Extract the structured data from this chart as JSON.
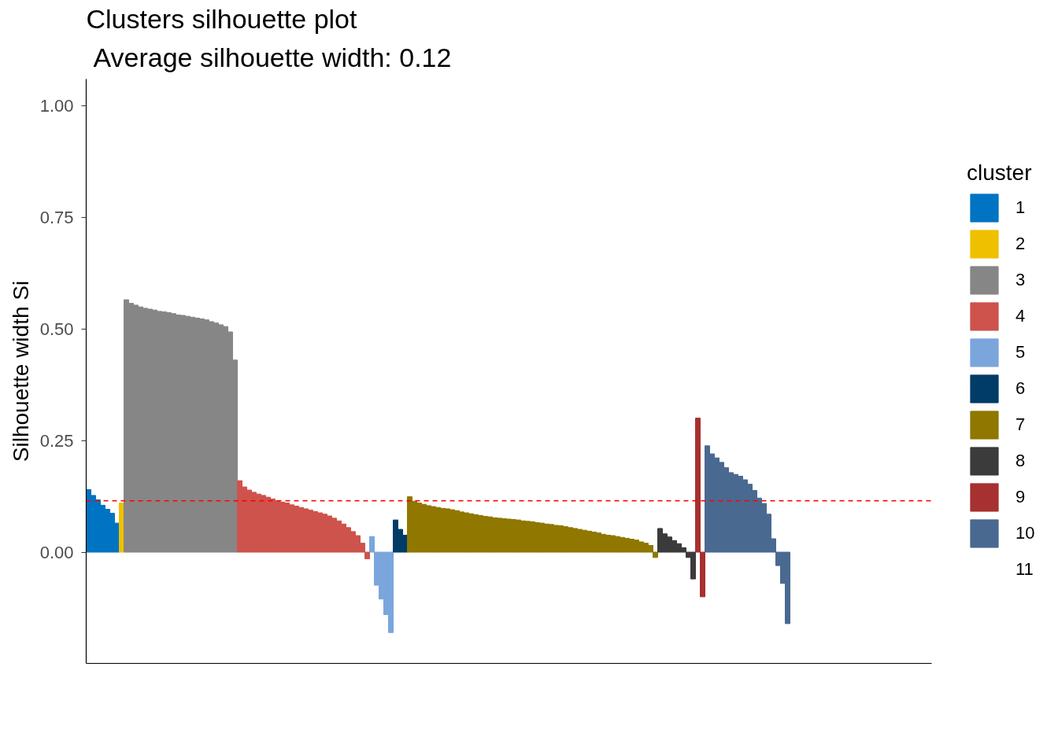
{
  "chart_data": {
    "type": "bar",
    "title": "Clusters silhouette plot",
    "subtitle": "Average silhouette width: 0.12",
    "ylabel": "Silhouette width Si",
    "legend_title": "cluster",
    "legend": "right",
    "tick_labels": "y",
    "ylim": [
      -0.249,
      1.059
    ],
    "yticks": [
      {
        "value": 0,
        "label": "0.00"
      },
      {
        "value": 0.25,
        "label": "0.25"
      },
      {
        "value": 0.5,
        "label": "0.50"
      },
      {
        "value": 0.75,
        "label": "0.75"
      },
      {
        "value": 1,
        "label": "1.00"
      }
    ],
    "ref_lines": [
      {
        "axis": "y",
        "value": 0.115,
        "color": "#ff0000",
        "line_style": "dashed"
      }
    ],
    "categories": [
      null,
      null,
      null,
      null,
      null,
      null,
      null,
      null,
      null,
      null,
      null,
      null,
      null,
      null,
      null,
      null,
      null,
      null,
      null,
      null,
      null,
      null,
      null,
      null,
      null,
      null,
      null,
      null,
      null,
      null,
      null,
      null,
      null,
      null,
      null,
      null,
      null,
      null,
      null,
      null,
      null,
      null,
      null,
      null,
      null,
      null,
      null,
      null,
      null,
      null,
      null,
      null,
      null,
      null,
      null,
      null,
      null,
      null,
      null,
      null,
      null,
      null,
      null,
      null,
      null,
      null,
      null,
      null,
      null,
      null,
      null,
      null,
      null,
      null,
      null,
      null,
      null,
      null,
      null,
      null,
      null,
      null,
      null,
      null,
      null,
      null,
      null,
      null,
      null,
      null,
      null,
      null,
      null,
      null,
      null,
      null,
      null,
      null,
      null,
      null,
      null,
      null,
      null,
      null,
      null,
      null,
      null,
      null,
      null,
      null,
      null,
      null,
      null,
      null,
      null,
      null,
      null,
      null,
      null,
      null,
      null,
      null,
      null,
      null,
      null,
      null,
      null,
      null,
      null,
      null,
      null,
      null,
      null,
      null,
      null,
      null,
      null,
      null,
      null,
      null,
      null,
      null,
      null,
      null,
      null,
      null,
      null,
      null,
      null,
      null,
      null,
      null,
      null,
      null,
      null,
      null,
      null,
      null,
      null,
      null,
      null,
      null,
      null,
      null,
      null,
      null,
      null,
      null,
      null,
      null,
      null,
      null,
      null,
      null,
      null,
      null,
      null,
      null,
      null
    ],
    "series": [
      {
        "name": "1",
        "color": "#0073c2",
        "values": [
          0.14,
          0.127,
          0.117,
          0.105,
          0.096,
          0.087,
          0.065,
          null,
          null,
          null,
          null,
          null,
          null,
          null,
          null,
          null,
          null,
          null,
          null,
          null,
          null,
          null,
          null,
          null,
          null,
          null,
          null,
          null,
          null,
          null,
          null,
          null,
          null,
          null,
          null,
          null,
          null,
          null,
          null,
          null,
          null,
          null,
          null,
          null,
          null,
          null,
          null,
          null,
          null,
          null,
          null,
          null,
          null,
          null,
          null,
          null,
          null,
          null,
          null,
          null,
          null,
          null,
          null,
          null,
          null,
          null,
          null,
          null,
          null,
          null,
          null,
          null,
          null,
          null,
          null,
          null,
          null,
          null,
          null,
          null,
          null,
          null,
          null,
          null,
          null,
          null,
          null,
          null,
          null,
          null,
          null,
          null,
          null,
          null,
          null,
          null,
          null,
          null,
          null,
          null,
          null,
          null,
          null,
          null,
          null,
          null,
          null,
          null,
          null,
          null,
          null,
          null,
          null,
          null,
          null,
          null,
          null,
          null,
          null,
          null,
          null,
          null,
          null,
          null,
          null,
          null,
          null,
          null,
          null,
          null,
          null,
          null,
          null,
          null,
          null,
          null,
          null,
          null,
          null,
          null,
          null,
          null,
          null,
          null,
          null,
          null,
          null,
          null,
          null,
          null,
          null,
          null,
          null,
          null,
          null,
          null,
          null,
          null,
          null,
          null,
          null,
          null,
          null,
          null,
          null,
          null,
          null,
          null,
          null,
          null,
          null,
          null,
          null,
          null,
          null,
          null,
          null,
          null,
          null
        ]
      },
      {
        "name": "2",
        "color": "#efc000",
        "values": [
          null,
          null,
          null,
          null,
          null,
          null,
          null,
          0.11,
          null,
          null,
          null,
          null,
          null,
          null,
          null,
          null,
          null,
          null,
          null,
          null,
          null,
          null,
          null,
          null,
          null,
          null,
          null,
          null,
          null,
          null,
          null,
          null,
          null,
          null,
          null,
          null,
          null,
          null,
          null,
          null,
          null,
          null,
          null,
          null,
          null,
          null,
          null,
          null,
          null,
          null,
          null,
          null,
          null,
          null,
          null,
          null,
          null,
          null,
          null,
          null,
          null,
          null,
          null,
          null,
          null,
          null,
          null,
          null,
          null,
          null,
          null,
          null,
          null,
          null,
          null,
          null,
          null,
          null,
          null,
          null,
          null,
          null,
          null,
          null,
          null,
          null,
          null,
          null,
          null,
          null,
          null,
          null,
          null,
          null,
          null,
          null,
          null,
          null,
          null,
          null,
          null,
          null,
          null,
          null,
          null,
          null,
          null,
          null,
          null,
          null,
          null,
          null,
          null,
          null,
          null,
          null,
          null,
          null,
          null,
          null,
          null,
          null,
          null,
          null,
          null,
          null,
          null,
          null,
          null,
          null,
          null,
          null,
          null,
          null,
          null,
          null,
          null,
          null,
          null,
          null,
          null,
          null,
          null,
          null,
          null,
          null,
          null,
          null,
          null,
          null,
          null,
          null,
          null,
          null,
          null,
          null,
          null,
          null,
          null,
          null,
          null,
          null,
          null,
          null,
          null,
          null,
          null,
          null,
          null,
          null,
          null,
          null,
          null,
          null,
          null,
          null,
          null,
          null,
          null
        ]
      },
      {
        "name": "3",
        "color": "#868686",
        "values": [
          null,
          null,
          null,
          null,
          null,
          null,
          null,
          null,
          0.565,
          0.557,
          0.553,
          0.549,
          0.546,
          0.544,
          0.542,
          0.539,
          0.538,
          0.536,
          0.534,
          0.531,
          0.53,
          0.528,
          0.526,
          0.524,
          0.522,
          0.52,
          0.516,
          0.513,
          0.509,
          0.505,
          0.493,
          0.43,
          null,
          null,
          null,
          null,
          null,
          null,
          null,
          null,
          null,
          null,
          null,
          null,
          null,
          null,
          null,
          null,
          null,
          null,
          null,
          null,
          null,
          null,
          null,
          null,
          null,
          null,
          null,
          null,
          null,
          null,
          null,
          null,
          null,
          null,
          null,
          null,
          null,
          null,
          null,
          null,
          null,
          null,
          null,
          null,
          null,
          null,
          null,
          null,
          null,
          null,
          null,
          null,
          null,
          null,
          null,
          null,
          null,
          null,
          null,
          null,
          null,
          null,
          null,
          null,
          null,
          null,
          null,
          null,
          null,
          null,
          null,
          null,
          null,
          null,
          null,
          null,
          null,
          null,
          null,
          null,
          null,
          null,
          null,
          null,
          null,
          null,
          null,
          null,
          null,
          null,
          null,
          null,
          null,
          null,
          null,
          null,
          null,
          null,
          null,
          null,
          null,
          null,
          null,
          null,
          null,
          null,
          null,
          null,
          null,
          null,
          null,
          null,
          null,
          null,
          null,
          null,
          null,
          null,
          null,
          null,
          null,
          null,
          null,
          null,
          null,
          null,
          null,
          null,
          null,
          null,
          null,
          null,
          null,
          null,
          null,
          null,
          null,
          null,
          null,
          null,
          null,
          null,
          null,
          null,
          null,
          null,
          null
        ]
      },
      {
        "name": "4",
        "color": "#cd534c",
        "values": [
          null,
          null,
          null,
          null,
          null,
          null,
          null,
          null,
          null,
          null,
          null,
          null,
          null,
          null,
          null,
          null,
          null,
          null,
          null,
          null,
          null,
          null,
          null,
          null,
          null,
          null,
          null,
          null,
          null,
          null,
          null,
          null,
          0.16,
          0.146,
          0.139,
          0.134,
          0.13,
          0.127,
          0.123,
          0.119,
          0.115,
          0.112,
          0.11,
          0.106,
          0.103,
          0.1,
          0.097,
          0.094,
          0.091,
          0.088,
          0.085,
          0.081,
          0.076,
          0.07,
          0.063,
          0.055,
          0.046,
          0.037,
          0.02,
          -0.015,
          null,
          null,
          null,
          null,
          null,
          null,
          null,
          null,
          null,
          null,
          null,
          null,
          null,
          null,
          null,
          null,
          null,
          null,
          null,
          null,
          null,
          null,
          null,
          null,
          null,
          null,
          null,
          null,
          null,
          null,
          null,
          null,
          null,
          null,
          null,
          null,
          null,
          null,
          null,
          null,
          null,
          null,
          null,
          null,
          null,
          null,
          null,
          null,
          null,
          null,
          null,
          null,
          null,
          null,
          null,
          null,
          null,
          null,
          null,
          null,
          null,
          null,
          null,
          null,
          null,
          null,
          null,
          null,
          null,
          null,
          null,
          null,
          null,
          null,
          null,
          null,
          null,
          null,
          null,
          null,
          null,
          null,
          null,
          null,
          null,
          null,
          null,
          null,
          null,
          null,
          null,
          null,
          null,
          null,
          null,
          null,
          null,
          null,
          null,
          null,
          null,
          null,
          null,
          null,
          null,
          null,
          null,
          null,
          null,
          null,
          null,
          null,
          null,
          null,
          null,
          null,
          null,
          null,
          null
        ]
      },
      {
        "name": "5",
        "color": "#7aa6dc",
        "values": [
          null,
          null,
          null,
          null,
          null,
          null,
          null,
          null,
          null,
          null,
          null,
          null,
          null,
          null,
          null,
          null,
          null,
          null,
          null,
          null,
          null,
          null,
          null,
          null,
          null,
          null,
          null,
          null,
          null,
          null,
          null,
          null,
          null,
          null,
          null,
          null,
          null,
          null,
          null,
          null,
          null,
          null,
          null,
          null,
          null,
          null,
          null,
          null,
          null,
          null,
          null,
          null,
          null,
          null,
          null,
          null,
          null,
          null,
          null,
          null,
          0.035,
          -0.074,
          -0.105,
          -0.14,
          -0.18,
          null,
          null,
          null,
          null,
          null,
          null,
          null,
          null,
          null,
          null,
          null,
          null,
          null,
          null,
          null,
          null,
          null,
          null,
          null,
          null,
          null,
          null,
          null,
          null,
          null,
          null,
          null,
          null,
          null,
          null,
          null,
          null,
          null,
          null,
          null,
          null,
          null,
          null,
          null,
          null,
          null,
          null,
          null,
          null,
          null,
          null,
          null,
          null,
          null,
          null,
          null,
          null,
          null,
          null,
          null,
          null,
          null,
          null,
          null,
          null,
          null,
          null,
          null,
          null,
          null,
          null,
          null,
          null,
          null,
          null,
          null,
          null,
          null,
          null,
          null,
          null,
          null,
          null,
          null,
          null,
          null,
          null,
          null,
          null,
          null,
          null,
          null,
          null,
          null,
          null,
          null,
          null,
          null,
          null,
          null,
          null,
          null,
          null,
          null,
          null,
          null,
          null,
          null,
          null,
          null,
          null,
          null,
          null,
          null,
          null,
          null,
          null,
          null,
          null
        ]
      },
      {
        "name": "6",
        "color": "#003c67",
        "values": [
          null,
          null,
          null,
          null,
          null,
          null,
          null,
          null,
          null,
          null,
          null,
          null,
          null,
          null,
          null,
          null,
          null,
          null,
          null,
          null,
          null,
          null,
          null,
          null,
          null,
          null,
          null,
          null,
          null,
          null,
          null,
          null,
          null,
          null,
          null,
          null,
          null,
          null,
          null,
          null,
          null,
          null,
          null,
          null,
          null,
          null,
          null,
          null,
          null,
          null,
          null,
          null,
          null,
          null,
          null,
          null,
          null,
          null,
          null,
          null,
          null,
          null,
          null,
          null,
          null,
          0.072,
          0.051,
          0.038,
          null,
          null,
          null,
          null,
          null,
          null,
          null,
          null,
          null,
          null,
          null,
          null,
          null,
          null,
          null,
          null,
          null,
          null,
          null,
          null,
          null,
          null,
          null,
          null,
          null,
          null,
          null,
          null,
          null,
          null,
          null,
          null,
          null,
          null,
          null,
          null,
          null,
          null,
          null,
          null,
          null,
          null,
          null,
          null,
          null,
          null,
          null,
          null,
          null,
          null,
          null,
          null,
          null,
          null,
          null,
          null,
          null,
          null,
          null,
          null,
          null,
          null,
          null,
          null,
          null,
          null,
          null,
          null,
          null,
          null,
          null,
          null,
          null,
          null,
          null,
          null,
          null,
          null,
          null,
          null,
          null,
          null,
          null,
          null,
          null,
          null,
          null,
          null,
          null,
          null,
          null,
          null,
          null,
          null,
          null,
          null,
          null,
          null,
          null,
          null,
          null,
          null,
          null,
          null,
          null,
          null,
          null,
          null,
          null,
          null,
          null
        ]
      },
      {
        "name": "7",
        "color": "#8f7700",
        "values": [
          null,
          null,
          null,
          null,
          null,
          null,
          null,
          null,
          null,
          null,
          null,
          null,
          null,
          null,
          null,
          null,
          null,
          null,
          null,
          null,
          null,
          null,
          null,
          null,
          null,
          null,
          null,
          null,
          null,
          null,
          null,
          null,
          null,
          null,
          null,
          null,
          null,
          null,
          null,
          null,
          null,
          null,
          null,
          null,
          null,
          null,
          null,
          null,
          null,
          null,
          null,
          null,
          null,
          null,
          null,
          null,
          null,
          null,
          null,
          null,
          null,
          null,
          null,
          null,
          null,
          null,
          null,
          null,
          0.124,
          0.114,
          0.11,
          0.107,
          0.104,
          0.102,
          0.1,
          0.098,
          0.097,
          0.095,
          0.093,
          0.09,
          0.088,
          0.086,
          0.084,
          0.082,
          0.08,
          0.079,
          0.077,
          0.076,
          0.075,
          0.074,
          0.073,
          0.072,
          0.07,
          0.069,
          0.068,
          0.066,
          0.065,
          0.063,
          0.062,
          0.06,
          0.059,
          0.057,
          0.055,
          0.053,
          0.051,
          0.049,
          0.047,
          0.045,
          0.043,
          0.04,
          0.038,
          0.037,
          0.035,
          0.033,
          0.031,
          0.029,
          0.027,
          0.023,
          0.02,
          0.015,
          -0.012,
          null,
          null,
          null,
          null,
          null,
          null,
          null,
          null,
          null,
          null,
          null,
          null,
          null,
          null,
          null,
          null,
          null,
          null,
          null,
          null,
          null,
          null,
          null,
          null,
          null,
          null,
          null,
          null,
          null,
          null,
          null,
          null,
          null,
          null,
          null,
          null,
          null,
          null,
          null,
          null,
          null,
          null,
          null,
          null,
          null,
          null,
          null,
          null,
          null,
          null,
          null,
          null,
          null,
          null,
          null,
          null,
          null,
          null
        ]
      },
      {
        "name": "8",
        "color": "#3b3b3b",
        "values": [
          null,
          null,
          null,
          null,
          null,
          null,
          null,
          null,
          null,
          null,
          null,
          null,
          null,
          null,
          null,
          null,
          null,
          null,
          null,
          null,
          null,
          null,
          null,
          null,
          null,
          null,
          null,
          null,
          null,
          null,
          null,
          null,
          null,
          null,
          null,
          null,
          null,
          null,
          null,
          null,
          null,
          null,
          null,
          null,
          null,
          null,
          null,
          null,
          null,
          null,
          null,
          null,
          null,
          null,
          null,
          null,
          null,
          null,
          null,
          null,
          null,
          null,
          null,
          null,
          null,
          null,
          null,
          null,
          null,
          null,
          null,
          null,
          null,
          null,
          null,
          null,
          null,
          null,
          null,
          null,
          null,
          null,
          null,
          null,
          null,
          null,
          null,
          null,
          null,
          null,
          null,
          null,
          null,
          null,
          null,
          null,
          null,
          null,
          null,
          null,
          null,
          null,
          null,
          null,
          null,
          null,
          null,
          null,
          null,
          null,
          null,
          null,
          null,
          null,
          null,
          null,
          null,
          null,
          null,
          null,
          null,
          0.053,
          0.041,
          0.034,
          0.026,
          0.019,
          0.01,
          -0.012,
          -0.06,
          null,
          null,
          null,
          null,
          null,
          null,
          null,
          null,
          null,
          null,
          null,
          null,
          null,
          null,
          null,
          null,
          null,
          null,
          null,
          null,
          null,
          null,
          null,
          null,
          null,
          null,
          null,
          null,
          null,
          null,
          null,
          null,
          null,
          null,
          null,
          null,
          null,
          null,
          null,
          null,
          null,
          null,
          null,
          null,
          null,
          null,
          null,
          null,
          null,
          null
        ]
      },
      {
        "name": "9",
        "color": "#a73030",
        "values": [
          null,
          null,
          null,
          null,
          null,
          null,
          null,
          null,
          null,
          null,
          null,
          null,
          null,
          null,
          null,
          null,
          null,
          null,
          null,
          null,
          null,
          null,
          null,
          null,
          null,
          null,
          null,
          null,
          null,
          null,
          null,
          null,
          null,
          null,
          null,
          null,
          null,
          null,
          null,
          null,
          null,
          null,
          null,
          null,
          null,
          null,
          null,
          null,
          null,
          null,
          null,
          null,
          null,
          null,
          null,
          null,
          null,
          null,
          null,
          null,
          null,
          null,
          null,
          null,
          null,
          null,
          null,
          null,
          null,
          null,
          null,
          null,
          null,
          null,
          null,
          null,
          null,
          null,
          null,
          null,
          null,
          null,
          null,
          null,
          null,
          null,
          null,
          null,
          null,
          null,
          null,
          null,
          null,
          null,
          null,
          null,
          null,
          null,
          null,
          null,
          null,
          null,
          null,
          null,
          null,
          null,
          null,
          null,
          null,
          null,
          null,
          null,
          null,
          null,
          null,
          null,
          null,
          null,
          null,
          null,
          null,
          null,
          null,
          null,
          null,
          null,
          null,
          null,
          null,
          0.3,
          -0.1,
          null,
          null,
          null,
          null,
          null,
          null,
          null,
          null,
          null,
          null,
          null,
          null,
          null,
          null,
          null,
          null,
          null,
          null,
          null,
          null,
          null,
          null,
          null,
          null,
          null,
          null,
          null,
          null,
          null,
          null,
          null,
          null,
          null,
          null,
          null,
          null,
          null,
          null,
          null,
          null,
          null,
          null,
          null,
          null,
          null,
          null,
          null,
          null
        ]
      },
      {
        "name": "10",
        "color": "#4a6990",
        "values": [
          null,
          null,
          null,
          null,
          null,
          null,
          null,
          null,
          null,
          null,
          null,
          null,
          null,
          null,
          null,
          null,
          null,
          null,
          null,
          null,
          null,
          null,
          null,
          null,
          null,
          null,
          null,
          null,
          null,
          null,
          null,
          null,
          null,
          null,
          null,
          null,
          null,
          null,
          null,
          null,
          null,
          null,
          null,
          null,
          null,
          null,
          null,
          null,
          null,
          null,
          null,
          null,
          null,
          null,
          null,
          null,
          null,
          null,
          null,
          null,
          null,
          null,
          null,
          null,
          null,
          null,
          null,
          null,
          null,
          null,
          null,
          null,
          null,
          null,
          null,
          null,
          null,
          null,
          null,
          null,
          null,
          null,
          null,
          null,
          null,
          null,
          null,
          null,
          null,
          null,
          null,
          null,
          null,
          null,
          null,
          null,
          null,
          null,
          null,
          null,
          null,
          null,
          null,
          null,
          null,
          null,
          null,
          null,
          null,
          null,
          null,
          null,
          null,
          null,
          null,
          null,
          null,
          null,
          null,
          null,
          null,
          null,
          null,
          null,
          null,
          null,
          null,
          null,
          null,
          null,
          null,
          0.238,
          0.22,
          0.211,
          0.201,
          0.189,
          0.178,
          0.174,
          0.17,
          0.162,
          0.152,
          0.138,
          0.121,
          0.109,
          0.085,
          0.03,
          -0.03,
          -0.07,
          -0.16,
          null,
          null,
          null,
          null,
          null,
          null,
          null,
          null,
          null,
          null,
          null,
          null,
          null,
          null,
          null,
          null,
          null,
          null,
          null,
          null,
          null,
          null,
          null,
          null,
          null,
          null,
          null,
          null,
          null,
          null
        ]
      },
      {
        "name": "11",
        "values": [
          null,
          null,
          null,
          null,
          null,
          null,
          null,
          null,
          null,
          null,
          null,
          null,
          null,
          null,
          null,
          null,
          null,
          null,
          null,
          null,
          null,
          null,
          null,
          null,
          null,
          null,
          null,
          null,
          null,
          null,
          null,
          null,
          null,
          null,
          null,
          null,
          null,
          null,
          null,
          null,
          null,
          null,
          null,
          null,
          null,
          null,
          null,
          null,
          null,
          null,
          null,
          null,
          null,
          null,
          null,
          null,
          null,
          null,
          null,
          null,
          null,
          null,
          null,
          null,
          null,
          null,
          null,
          null,
          null,
          null,
          null,
          null,
          null,
          null,
          null,
          null,
          null,
          null,
          null,
          null,
          null,
          null,
          null,
          null,
          null,
          null,
          null,
          null,
          null,
          null,
          null,
          null,
          null,
          null,
          null,
          null,
          null,
          null,
          null,
          null,
          null,
          null,
          null,
          null,
          null,
          null,
          null,
          null,
          null,
          null,
          null,
          null,
          null,
          null,
          null,
          null,
          null,
          null,
          null,
          null,
          null,
          null,
          null,
          null,
          null,
          null,
          null,
          null,
          null,
          null,
          null,
          null,
          null,
          null,
          null,
          null,
          null,
          null,
          null,
          null,
          null,
          null,
          null,
          null,
          null,
          null,
          null,
          null,
          null,
          null,
          null,
          null,
          null,
          null,
          null,
          null,
          null,
          null,
          null,
          null,
          null,
          null,
          null,
          null,
          null,
          null,
          null,
          null,
          null,
          null,
          null,
          null,
          null,
          null,
          null,
          null,
          null,
          null,
          null
        ]
      }
    ]
  }
}
